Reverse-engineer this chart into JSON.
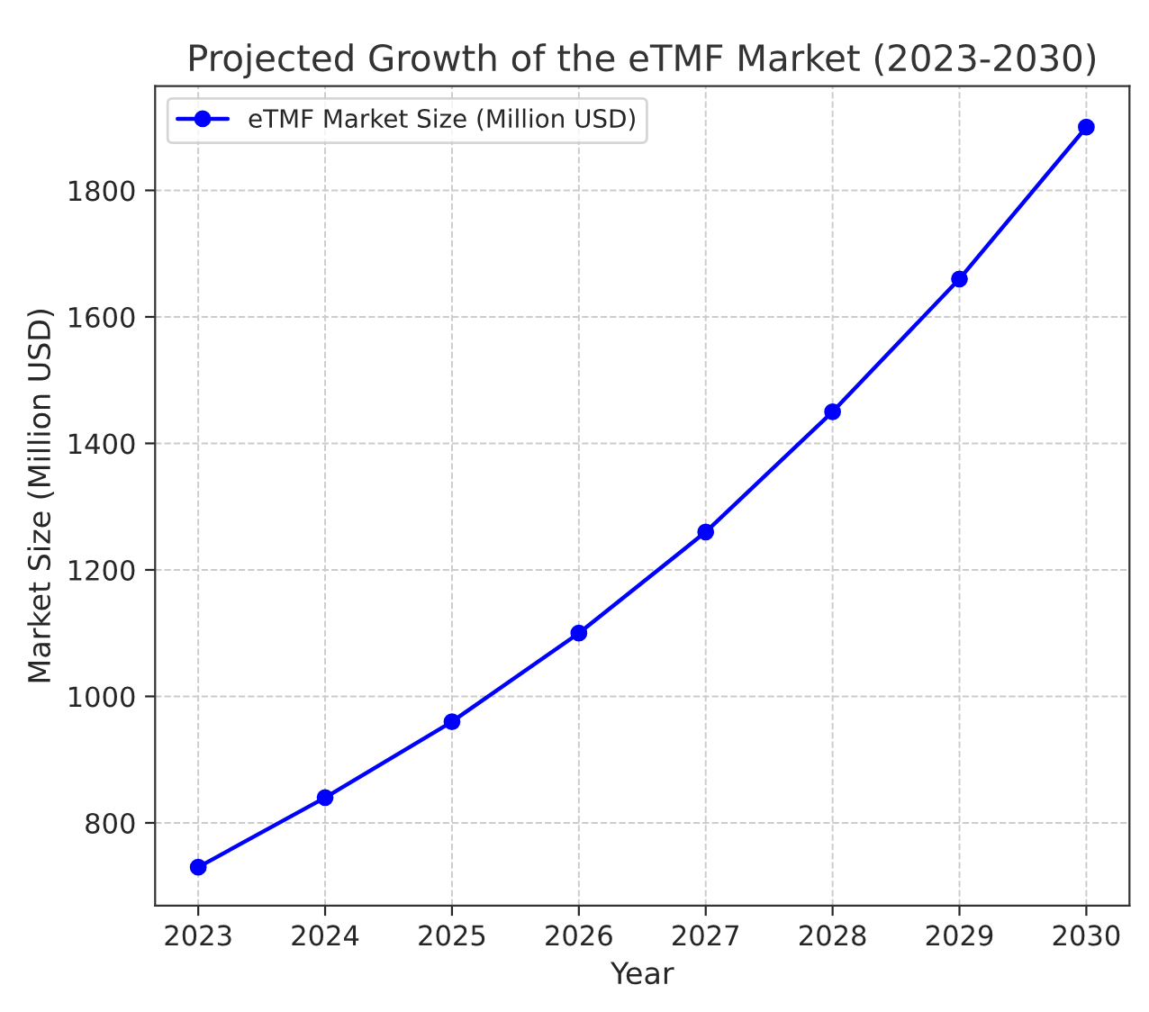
{
  "chart_data": {
    "type": "line",
    "title": "Projected Growth of the eTMF Market (2023-2030)",
    "xlabel": "Year",
    "ylabel": "Market Size (Million USD)",
    "x": [
      2023,
      2024,
      2025,
      2026,
      2027,
      2028,
      2029,
      2030
    ],
    "series": [
      {
        "name": "eTMF Market Size (Million USD)",
        "color": "#0000ff",
        "values": [
          730,
          840,
          960,
          1100,
          1260,
          1450,
          1660,
          1900
        ]
      }
    ],
    "xlim": [
      2022.66,
      2030.34
    ],
    "xticks": [
      2023,
      2024,
      2025,
      2026,
      2027,
      2028,
      2029,
      2030
    ],
    "ylim": [
      669,
      1965
    ],
    "yticks": [
      800,
      1000,
      1200,
      1400,
      1600,
      1800
    ],
    "grid": true,
    "legend": "top left",
    "marker": "circle",
    "line_style": "solid"
  }
}
